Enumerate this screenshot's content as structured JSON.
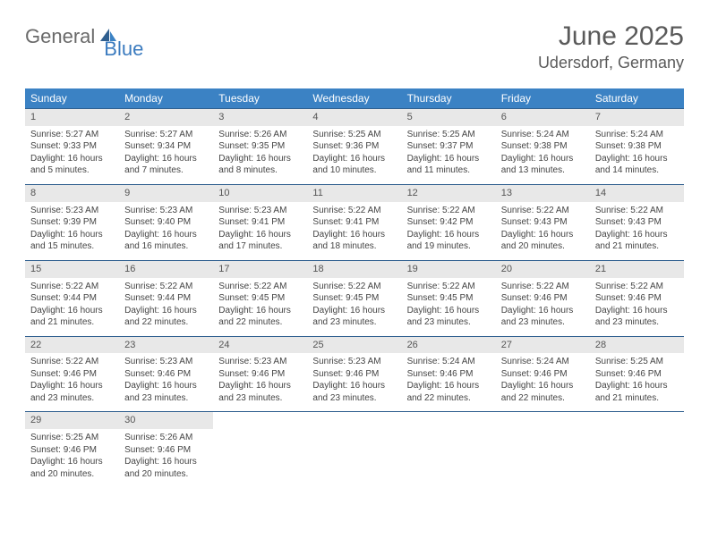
{
  "brand": {
    "part1": "General",
    "part2": "Blue"
  },
  "title": "June 2025",
  "location": "Udersdorf, Germany",
  "colors": {
    "header_bg": "#3b82c4",
    "header_text": "#ffffff",
    "day_bg": "#e8e8e8",
    "rule": "#2f5f8f",
    "text": "#444444",
    "brand_gray": "#6a6a6a",
    "brand_blue": "#3b7bbf"
  },
  "typography": {
    "title_fontsize": 30,
    "location_fontsize": 18,
    "header_fontsize": 12,
    "daynum_fontsize": 11,
    "cell_fontsize": 10
  },
  "weekdays": [
    "Sunday",
    "Monday",
    "Tuesday",
    "Wednesday",
    "Thursday",
    "Friday",
    "Saturday"
  ],
  "weeks": [
    [
      {
        "n": "1",
        "sr": "5:27 AM",
        "ss": "9:33 PM",
        "dl": "16 hours and 5 minutes."
      },
      {
        "n": "2",
        "sr": "5:27 AM",
        "ss": "9:34 PM",
        "dl": "16 hours and 7 minutes."
      },
      {
        "n": "3",
        "sr": "5:26 AM",
        "ss": "9:35 PM",
        "dl": "16 hours and 8 minutes."
      },
      {
        "n": "4",
        "sr": "5:25 AM",
        "ss": "9:36 PM",
        "dl": "16 hours and 10 minutes."
      },
      {
        "n": "5",
        "sr": "5:25 AM",
        "ss": "9:37 PM",
        "dl": "16 hours and 11 minutes."
      },
      {
        "n": "6",
        "sr": "5:24 AM",
        "ss": "9:38 PM",
        "dl": "16 hours and 13 minutes."
      },
      {
        "n": "7",
        "sr": "5:24 AM",
        "ss": "9:38 PM",
        "dl": "16 hours and 14 minutes."
      }
    ],
    [
      {
        "n": "8",
        "sr": "5:23 AM",
        "ss": "9:39 PM",
        "dl": "16 hours and 15 minutes."
      },
      {
        "n": "9",
        "sr": "5:23 AM",
        "ss": "9:40 PM",
        "dl": "16 hours and 16 minutes."
      },
      {
        "n": "10",
        "sr": "5:23 AM",
        "ss": "9:41 PM",
        "dl": "16 hours and 17 minutes."
      },
      {
        "n": "11",
        "sr": "5:22 AM",
        "ss": "9:41 PM",
        "dl": "16 hours and 18 minutes."
      },
      {
        "n": "12",
        "sr": "5:22 AM",
        "ss": "9:42 PM",
        "dl": "16 hours and 19 minutes."
      },
      {
        "n": "13",
        "sr": "5:22 AM",
        "ss": "9:43 PM",
        "dl": "16 hours and 20 minutes."
      },
      {
        "n": "14",
        "sr": "5:22 AM",
        "ss": "9:43 PM",
        "dl": "16 hours and 21 minutes."
      }
    ],
    [
      {
        "n": "15",
        "sr": "5:22 AM",
        "ss": "9:44 PM",
        "dl": "16 hours and 21 minutes."
      },
      {
        "n": "16",
        "sr": "5:22 AM",
        "ss": "9:44 PM",
        "dl": "16 hours and 22 minutes."
      },
      {
        "n": "17",
        "sr": "5:22 AM",
        "ss": "9:45 PM",
        "dl": "16 hours and 22 minutes."
      },
      {
        "n": "18",
        "sr": "5:22 AM",
        "ss": "9:45 PM",
        "dl": "16 hours and 23 minutes."
      },
      {
        "n": "19",
        "sr": "5:22 AM",
        "ss": "9:45 PM",
        "dl": "16 hours and 23 minutes."
      },
      {
        "n": "20",
        "sr": "5:22 AM",
        "ss": "9:46 PM",
        "dl": "16 hours and 23 minutes."
      },
      {
        "n": "21",
        "sr": "5:22 AM",
        "ss": "9:46 PM",
        "dl": "16 hours and 23 minutes."
      }
    ],
    [
      {
        "n": "22",
        "sr": "5:22 AM",
        "ss": "9:46 PM",
        "dl": "16 hours and 23 minutes."
      },
      {
        "n": "23",
        "sr": "5:23 AM",
        "ss": "9:46 PM",
        "dl": "16 hours and 23 minutes."
      },
      {
        "n": "24",
        "sr": "5:23 AM",
        "ss": "9:46 PM",
        "dl": "16 hours and 23 minutes."
      },
      {
        "n": "25",
        "sr": "5:23 AM",
        "ss": "9:46 PM",
        "dl": "16 hours and 23 minutes."
      },
      {
        "n": "26",
        "sr": "5:24 AM",
        "ss": "9:46 PM",
        "dl": "16 hours and 22 minutes."
      },
      {
        "n": "27",
        "sr": "5:24 AM",
        "ss": "9:46 PM",
        "dl": "16 hours and 22 minutes."
      },
      {
        "n": "28",
        "sr": "5:25 AM",
        "ss": "9:46 PM",
        "dl": "16 hours and 21 minutes."
      }
    ],
    [
      {
        "n": "29",
        "sr": "5:25 AM",
        "ss": "9:46 PM",
        "dl": "16 hours and 20 minutes."
      },
      {
        "n": "30",
        "sr": "5:26 AM",
        "ss": "9:46 PM",
        "dl": "16 hours and 20 minutes."
      },
      null,
      null,
      null,
      null,
      null
    ]
  ],
  "labels": {
    "sunrise": "Sunrise:",
    "sunset": "Sunset:",
    "daylight": "Daylight:"
  }
}
